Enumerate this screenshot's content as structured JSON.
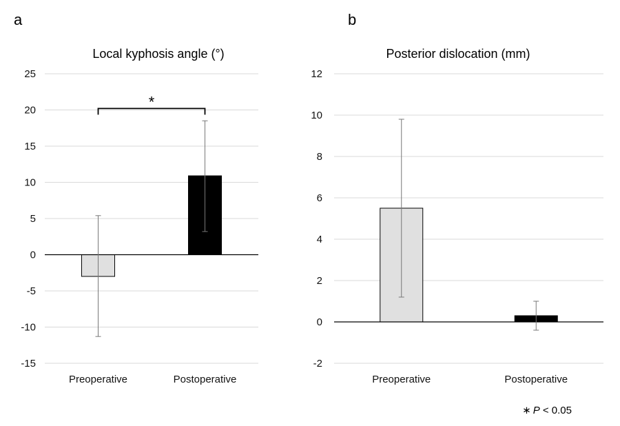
{
  "panel_letters": [
    "a",
    "b"
  ],
  "footnote": {
    "symbol": "∗",
    "p_symbol": "P",
    "text": " < 0.05"
  },
  "chart_data": [
    {
      "type": "bar",
      "title": "Local kyphosis angle (°)",
      "categories": [
        "Preoperative",
        "Postoperative"
      ],
      "values": [
        -3.0,
        10.9
      ],
      "error_low": [
        -11.3,
        3.2
      ],
      "error_high": [
        5.4,
        18.5
      ],
      "bar_colors": [
        "#e0e0e0",
        "#000000"
      ],
      "ylim": [
        -15,
        25
      ],
      "yticks": [
        -15,
        -10,
        -5,
        0,
        5,
        10,
        15,
        20,
        25
      ],
      "ytick_labels": [
        "-15",
        "-10",
        "-5",
        "0",
        "5",
        "10",
        "15",
        "20",
        "25"
      ],
      "grid": true,
      "significance": {
        "label": "*",
        "between": [
          0,
          1
        ],
        "y": 20.2
      }
    },
    {
      "type": "bar",
      "title": "Posterior dislocation (mm)",
      "categories": [
        "Preoperative",
        "Postoperative"
      ],
      "values": [
        5.5,
        0.3
      ],
      "error_low": [
        1.2,
        -0.4
      ],
      "error_high": [
        9.8,
        1.0
      ],
      "bar_colors": [
        "#e0e0e0",
        "#000000"
      ],
      "ylim": [
        -2,
        12
      ],
      "yticks": [
        -2,
        0,
        2,
        4,
        6,
        8,
        10,
        12
      ],
      "ytick_labels": [
        "-2",
        "0",
        "2",
        "4",
        "6",
        "8",
        "10",
        "12"
      ],
      "grid": true
    }
  ]
}
